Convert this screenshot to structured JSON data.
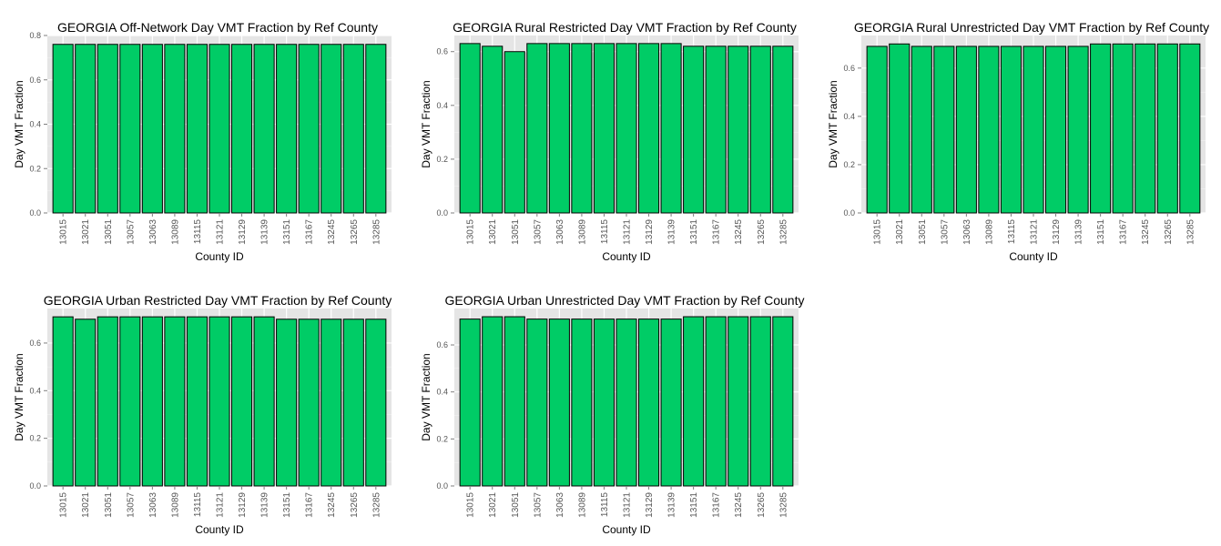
{
  "colors": {
    "bar_fill": "#00CC66",
    "bar_stroke": "#000000",
    "panel_bg": "#E5E5E5",
    "grid": "#FFFFFF"
  },
  "chart_data": [
    {
      "type": "bar",
      "title": "GEORGIA Off-Network Day VMT Fraction by Ref County",
      "xlabel": "County ID",
      "ylabel": "Day VMT Fraction",
      "categories": [
        "13015",
        "13021",
        "13051",
        "13057",
        "13063",
        "13089",
        "13115",
        "13121",
        "13129",
        "13139",
        "13151",
        "13167",
        "13245",
        "13265",
        "13285"
      ],
      "values": [
        0.76,
        0.76,
        0.76,
        0.76,
        0.76,
        0.76,
        0.76,
        0.76,
        0.76,
        0.76,
        0.76,
        0.76,
        0.76,
        0.76,
        0.76
      ],
      "ylim": [
        0,
        0.8
      ],
      "yticks": [
        0.0,
        0.2,
        0.4,
        0.6,
        0.8
      ],
      "ytick_labels": [
        "0.0",
        "0.2",
        "0.4",
        "0.6",
        "0.8"
      ]
    },
    {
      "type": "bar",
      "title": "GEORGIA Rural Restricted Day VMT Fraction by Ref County",
      "xlabel": "County ID",
      "ylabel": "Day VMT Fraction",
      "categories": [
        "13015",
        "13021",
        "13051",
        "13057",
        "13063",
        "13089",
        "13115",
        "13121",
        "13129",
        "13139",
        "13151",
        "13167",
        "13245",
        "13265",
        "13285"
      ],
      "values": [
        0.63,
        0.62,
        0.6,
        0.63,
        0.63,
        0.63,
        0.63,
        0.63,
        0.63,
        0.63,
        0.62,
        0.62,
        0.62,
        0.62,
        0.62
      ],
      "ylim": [
        0,
        0.66
      ],
      "yticks": [
        0.0,
        0.2,
        0.4,
        0.6
      ],
      "ytick_labels": [
        "0.0",
        "0.2",
        "0.4",
        "0.6"
      ]
    },
    {
      "type": "bar",
      "title": "GEORGIA Rural Unrestricted Day VMT Fraction by Ref County",
      "xlabel": "County ID",
      "ylabel": "Day VMT Fraction",
      "categories": [
        "13015",
        "13021",
        "13051",
        "13057",
        "13063",
        "13089",
        "13115",
        "13121",
        "13129",
        "13139",
        "13151",
        "13167",
        "13245",
        "13265",
        "13285"
      ],
      "values": [
        0.69,
        0.7,
        0.69,
        0.69,
        0.69,
        0.69,
        0.69,
        0.69,
        0.69,
        0.69,
        0.7,
        0.7,
        0.7,
        0.7,
        0.7
      ],
      "ylim": [
        0,
        0.735
      ],
      "yticks": [
        0.0,
        0.2,
        0.4,
        0.6
      ],
      "ytick_labels": [
        "0.0",
        "0.2",
        "0.4",
        "0.6"
      ]
    },
    {
      "type": "bar",
      "title": "GEORGIA Urban Restricted Day VMT Fraction by Ref County",
      "xlabel": "County ID",
      "ylabel": "Day VMT Fraction",
      "categories": [
        "13015",
        "13021",
        "13051",
        "13057",
        "13063",
        "13089",
        "13115",
        "13121",
        "13129",
        "13139",
        "13151",
        "13167",
        "13245",
        "13265",
        "13285"
      ],
      "values": [
        0.71,
        0.7,
        0.71,
        0.71,
        0.71,
        0.71,
        0.71,
        0.71,
        0.71,
        0.71,
        0.7,
        0.7,
        0.7,
        0.7,
        0.7
      ],
      "ylim": [
        0,
        0.745
      ],
      "yticks": [
        0.0,
        0.2,
        0.4,
        0.6
      ],
      "ytick_labels": [
        "0.0",
        "0.2",
        "0.4",
        "0.6"
      ]
    },
    {
      "type": "bar",
      "title": "GEORGIA Urban Unrestricted Day VMT Fraction by Ref County",
      "xlabel": "County ID",
      "ylabel": "Day VMT Fraction",
      "categories": [
        "13015",
        "13021",
        "13051",
        "13057",
        "13063",
        "13089",
        "13115",
        "13121",
        "13129",
        "13139",
        "13151",
        "13167",
        "13245",
        "13265",
        "13285"
      ],
      "values": [
        0.71,
        0.72,
        0.72,
        0.71,
        0.71,
        0.71,
        0.71,
        0.71,
        0.71,
        0.71,
        0.72,
        0.72,
        0.72,
        0.72,
        0.72
      ],
      "ylim": [
        0,
        0.755
      ],
      "yticks": [
        0.0,
        0.2,
        0.4,
        0.6
      ],
      "ytick_labels": [
        "0.0",
        "0.2",
        "0.4",
        "0.6"
      ]
    }
  ]
}
